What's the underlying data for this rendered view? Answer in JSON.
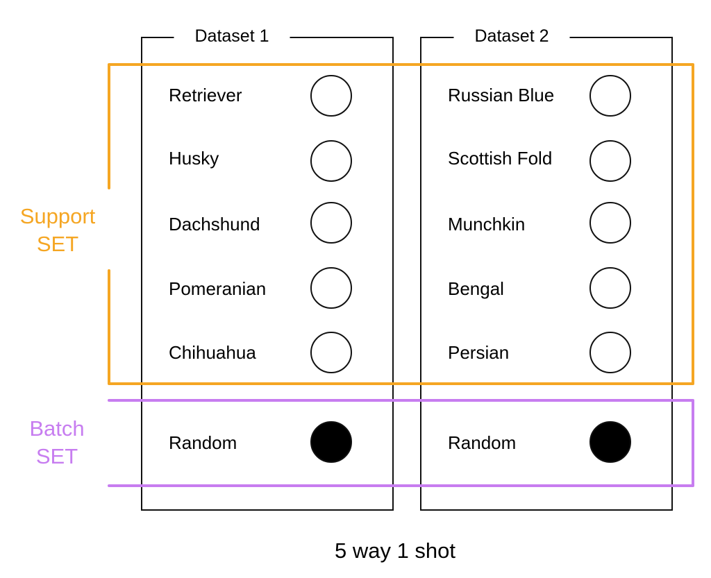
{
  "datasets": [
    {
      "title": "Dataset 1",
      "support": [
        "Retriever",
        "Husky",
        "Dachshund",
        "Pomeranian",
        "Chihuahua"
      ],
      "batch": "Random"
    },
    {
      "title": "Dataset 2",
      "support": [
        "Russian Blue",
        "Scottish Fold",
        "Munchkin",
        "Bengal",
        "Persian"
      ],
      "batch": "Random"
    }
  ],
  "groups": {
    "support": {
      "line1": "Support",
      "line2": "SET",
      "color": "#F5A623"
    },
    "batch": {
      "line1": "Batch",
      "line2": "SET",
      "color": "#C77DF0"
    }
  },
  "caption": "5 way 1 shot"
}
